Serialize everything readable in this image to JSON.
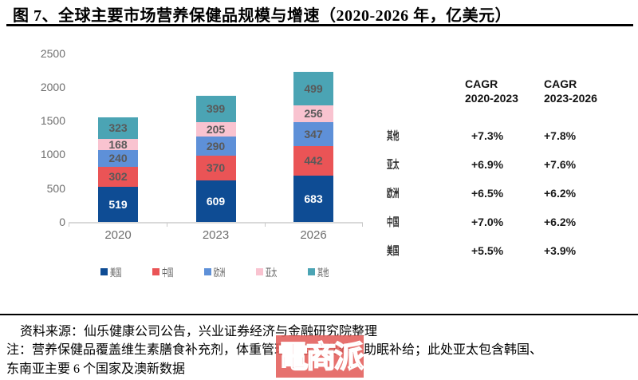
{
  "figure": {
    "title": "图 7、全球主要市场营养保健品规模与增速（2020-2026 年，亿美元）",
    "source_note": "资料来源：仙乐健康公司公告，兴业证券经济与金融研究院整理",
    "footnote_line1": "注：营养保健品覆盖维生素膳食补充剂，体重管理，运动营养，助眠补给；此处亚太包含韩国、",
    "footnote_line2": "东南亚主要 6 个国家及澳新数据",
    "watermark": "電商派"
  },
  "chart_data": {
    "type": "bar",
    "stacked": true,
    "title": "",
    "xlabel": "",
    "ylabel": "",
    "categories": [
      "2020",
      "2023",
      "2026"
    ],
    "series": [
      {
        "name": "美国",
        "color": "#0e4c94",
        "label_color": "#ffffff",
        "values": [
          519,
          609,
          683
        ]
      },
      {
        "name": "中国",
        "color": "#ea5456",
        "label_color": "#595959",
        "values": [
          302,
          370,
          442
        ]
      },
      {
        "name": "欧洲",
        "color": "#5e90d8",
        "label_color": "#595959",
        "values": [
          240,
          290,
          347
        ]
      },
      {
        "name": "亚太",
        "color": "#f9c3d0",
        "label_color": "#595959",
        "values": [
          168,
          205,
          256
        ]
      },
      {
        "name": "其他",
        "color": "#4ba4b4",
        "label_color": "#595959",
        "values": [
          323,
          399,
          499
        ]
      }
    ],
    "totals": [
      1552,
      1873,
      2227
    ],
    "y_ticks": [
      0,
      500,
      1000,
      1500,
      2000,
      2500
    ],
    "ylim": [
      0,
      2500
    ],
    "grid": false,
    "legend_position": "bottom"
  },
  "cagr_table": {
    "col_headers": [
      {
        "line1": "CAGR",
        "line2": "2020-2023"
      },
      {
        "line1": "CAGR",
        "line2": "2023-2026"
      }
    ],
    "rows": [
      {
        "region": "其他",
        "cagr_2020_2023": "+7.3%",
        "cagr_2023_2026": "+7.8%"
      },
      {
        "region": "亚太",
        "cagr_2020_2023": "+6.9%",
        "cagr_2023_2026": "+7.6%"
      },
      {
        "region": "欧洲",
        "cagr_2020_2023": "+6.5%",
        "cagr_2023_2026": "+6.2%"
      },
      {
        "region": "中国",
        "cagr_2020_2023": "+7.0%",
        "cagr_2023_2026": "+6.2%"
      },
      {
        "region": "美国",
        "cagr_2020_2023": "+5.5%",
        "cagr_2023_2026": "+3.9%"
      }
    ]
  }
}
